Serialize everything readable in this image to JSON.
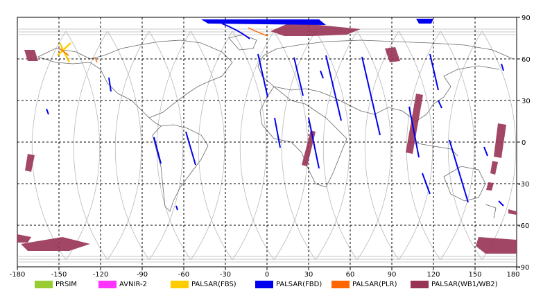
{
  "x_ticks": [
    "-180",
    "-150",
    "-120",
    "-90",
    "-60",
    "-30",
    "0",
    "30",
    "60",
    "90",
    "120",
    "150",
    "180"
  ],
  "y_ticks": [
    "90",
    "60",
    "30",
    "0",
    "-30",
    "-60",
    "-90"
  ],
  "legend": [
    {
      "label": "PRSIM",
      "color": "#99cc33"
    },
    {
      "label": "AVNIR-2",
      "color": "#ff33ff"
    },
    {
      "label": "PALSAR(FBS)",
      "color": "#ffcc00"
    },
    {
      "label": "PALSAR(FBD)",
      "color": "#0000ee"
    },
    {
      "label": "PALSAR(PLR)",
      "color": "#ff6600"
    },
    {
      "label": "PALSAR(WB1/WB2)",
      "color": "#993355"
    }
  ],
  "map_extent": {
    "lon": [
      -180,
      180
    ],
    "lat": [
      -90,
      90
    ]
  },
  "colors": {
    "grid": "#000000",
    "orbit": "#b0b0b0",
    "coast": "#666666",
    "frame": "#000000"
  }
}
